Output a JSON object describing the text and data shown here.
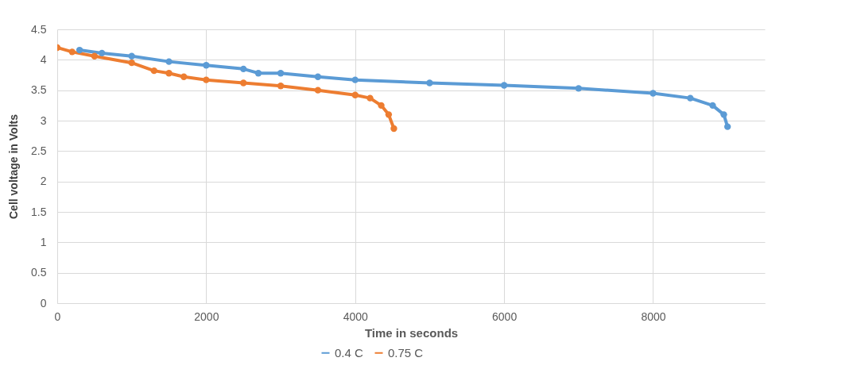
{
  "chart_data": {
    "type": "line",
    "xlabel": "Time in seconds",
    "ylabel": "Cell voltage in Volts",
    "xlim": [
      0,
      9500
    ],
    "xticks": [
      0,
      2000,
      4000,
      6000,
      8000
    ],
    "ylim": [
      0,
      4.5
    ],
    "yticks": [
      0,
      0.5,
      1,
      1.5,
      2,
      2.5,
      3,
      3.5,
      4,
      4.5
    ],
    "grid": true,
    "legend": "bottom",
    "marker": "circle",
    "series": [
      {
        "name": "0.4 C",
        "color": "#5b9bd5",
        "x": [
          300,
          600,
          1000,
          1500,
          2000,
          2500,
          2700,
          3000,
          3500,
          4000,
          5000,
          6000,
          7000,
          8000,
          8500,
          8800,
          8950,
          9000
        ],
        "values": [
          4.16,
          4.11,
          4.06,
          3.97,
          3.91,
          3.85,
          3.78,
          3.78,
          3.72,
          3.67,
          3.62,
          3.58,
          3.53,
          3.45,
          3.37,
          3.25,
          3.1,
          2.9
        ]
      },
      {
        "name": "0.75 C",
        "color": "#ed7d31",
        "x": [
          0,
          200,
          500,
          1000,
          1300,
          1500,
          1700,
          2000,
          2500,
          3000,
          3500,
          4000,
          4200,
          4350,
          4450,
          4520
        ],
        "values": [
          4.2,
          4.13,
          4.06,
          3.95,
          3.82,
          3.78,
          3.72,
          3.67,
          3.62,
          3.57,
          3.5,
          3.42,
          3.37,
          3.25,
          3.1,
          2.87
        ]
      }
    ]
  }
}
